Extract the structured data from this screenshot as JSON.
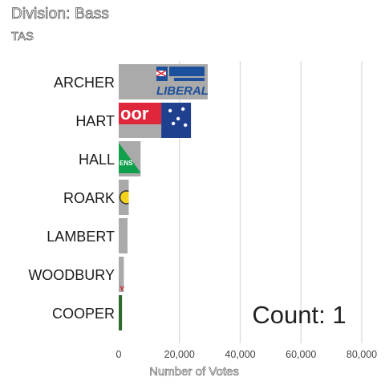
{
  "chart_data": {
    "type": "bar",
    "orientation": "horizontal",
    "title": "Division: Bass",
    "subtitle": "TAS",
    "xlabel": "Number of Votes",
    "ylabel": "",
    "xlim": [
      0,
      80000
    ],
    "xticks": [
      "0",
      "20,000",
      "40,000",
      "60,000",
      "80,000"
    ],
    "xtick_values": [
      0,
      20000,
      40000,
      60000,
      80000
    ],
    "grid": true,
    "categories": [
      "ARCHER",
      "HART",
      "HALL",
      "ROARK",
      "LAMBERT",
      "WOODBURY",
      "COOPER"
    ],
    "values": [
      29300,
      23800,
      7200,
      3300,
      2900,
      1700,
      1100
    ],
    "bar_color": "#aaaaaa",
    "party_logos": [
      {
        "candidate": "ARCHER",
        "logo": "liberal-logo",
        "text": "LIBERAL",
        "color": "#1c4f9c"
      },
      {
        "candidate": "HART",
        "logo": "labor-logo",
        "text": "oor",
        "color": "#e0263a"
      },
      {
        "candidate": "HALL",
        "logo": "greens-logo",
        "text": "ENS",
        "color": "#10a04b"
      },
      {
        "candidate": "ROARK",
        "logo": "yellow-party-logo",
        "text": "",
        "color": "#f2d21b"
      },
      {
        "candidate": "WOODBURY",
        "logo": "red-party-logo",
        "text": "Y",
        "color": "#d8202a"
      },
      {
        "candidate": "COOPER",
        "logo": "green-party-logo",
        "text": "",
        "color": "#2e6b2e"
      }
    ],
    "annotation": "Count:  1"
  }
}
